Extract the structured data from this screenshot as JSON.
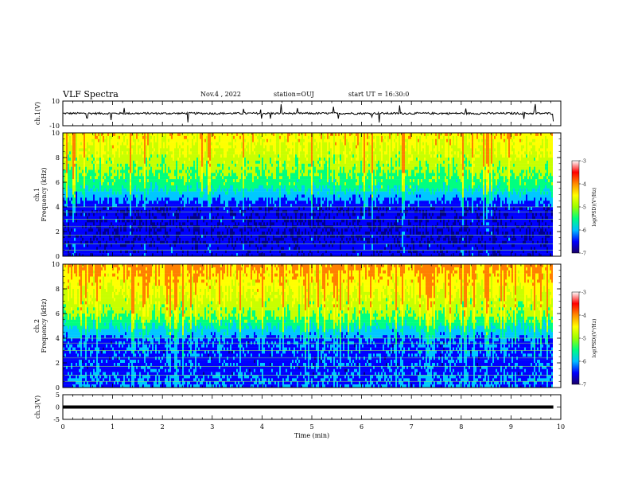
{
  "header": {
    "title": "VLF Spectra",
    "date": "Nov.4 , 2022",
    "station": "station=OUJ",
    "start": "start UT = 16:30:0"
  },
  "colors": {
    "spectrogram_scale": [
      "#00008b",
      "#0000ff",
      "#00c8ff",
      "#00ff80",
      "#c8ff00",
      "#ffff00",
      "#ff8000",
      "#ff0000",
      "#ffffff"
    ],
    "trace": "#000000"
  },
  "chart_data": [
    {
      "type": "line",
      "panel": "ch1-waveform",
      "ylabel": "ch.1(V)",
      "ylim": [
        -10,
        10
      ],
      "yticks": [
        "10",
        "-10"
      ],
      "xlim": [
        0,
        10
      ],
      "series": [
        {
          "description": "waveform",
          "baseline": 0,
          "amplitude_approx": 1
        }
      ]
    },
    {
      "type": "heatmap",
      "panel": "ch1-spectrogram",
      "ylabel": "ch.1 Frequency (kHz)",
      "ylim": [
        0,
        10
      ],
      "yticks": [
        "0",
        "2",
        "4",
        "6",
        "8",
        "10"
      ],
      "xlim": [
        0,
        10
      ],
      "colorbar": {
        "label": "log(PSD)(V²/Hz)",
        "range": [
          -7,
          -3
        ],
        "ticks": [
          "-3",
          "-4",
          "-5",
          "-6",
          "-7"
        ]
      }
    },
    {
      "type": "heatmap",
      "panel": "ch2-spectrogram",
      "ylabel": "ch.2 Frequency (kHz)",
      "ylim": [
        0,
        10
      ],
      "yticks": [
        "0",
        "2",
        "4",
        "6",
        "8",
        "10"
      ],
      "xlim": [
        0,
        10
      ],
      "colorbar": {
        "label": "log(PSD)(V²/Hz)",
        "range": [
          -7,
          -3
        ],
        "ticks": [
          "-3",
          "-4",
          "-5",
          "-6",
          "-7"
        ]
      }
    },
    {
      "type": "line",
      "panel": "ch3-waveform",
      "ylabel": "ch.3(V)",
      "ylim": [
        -5,
        5
      ],
      "yticks": [
        "5",
        "0",
        "-5"
      ],
      "xlim": [
        0,
        10
      ],
      "series": [
        {
          "description": "constant",
          "value": 0
        }
      ]
    }
  ],
  "xaxis": {
    "label": "Time (min)",
    "ticks": [
      "0",
      "1",
      "2",
      "3",
      "4",
      "5",
      "6",
      "7",
      "8",
      "9",
      "10"
    ]
  }
}
